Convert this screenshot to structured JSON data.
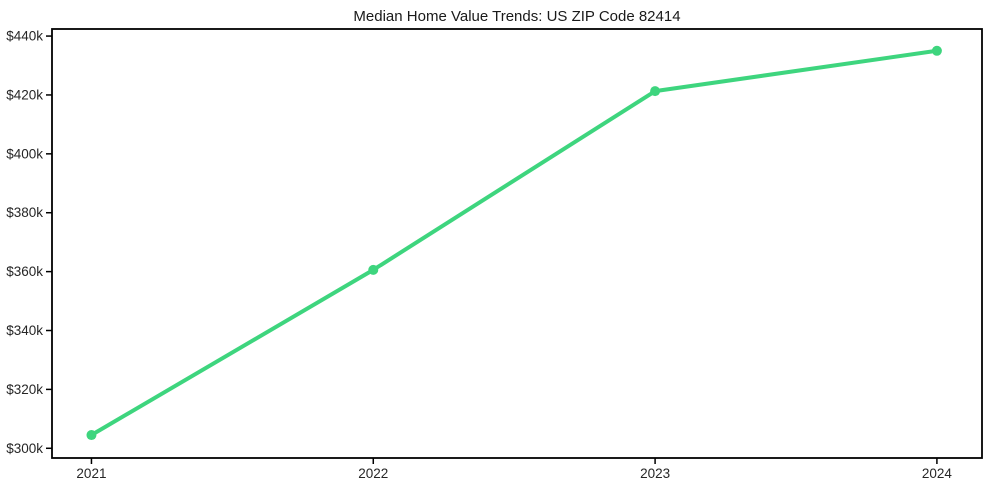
{
  "figure": {
    "background": "#ffffff",
    "spine_color": "#000000",
    "tick_color": "#000000",
    "tick_label_color": "#262626",
    "title_color": "#1a1a1a"
  },
  "chart_data": {
    "type": "line",
    "title": "Median Home Value Trends: US ZIP Code 82414",
    "x": [
      2021,
      2022,
      2023,
      2024
    ],
    "values": [
      304500,
      360600,
      421300,
      435000
    ],
    "x_tick_labels": [
      "2021",
      "2022",
      "2023",
      "2024"
    ],
    "y_ticks": [
      300000,
      320000,
      340000,
      360000,
      380000,
      400000,
      420000,
      440000
    ],
    "y_tick_labels": [
      "$300k",
      "$320k",
      "$340k",
      "$360k",
      "$380k",
      "$400k",
      "$420k",
      "$440k"
    ],
    "xlim": [
      2020.86,
      2024.16
    ],
    "ylim": [
      296700,
      442400
    ],
    "xlabel": "",
    "ylabel": "",
    "grid": false,
    "legend_position": "none",
    "line_color": "#3ed57e",
    "line_width": 4,
    "marker": "circle",
    "marker_radius": 5
  }
}
